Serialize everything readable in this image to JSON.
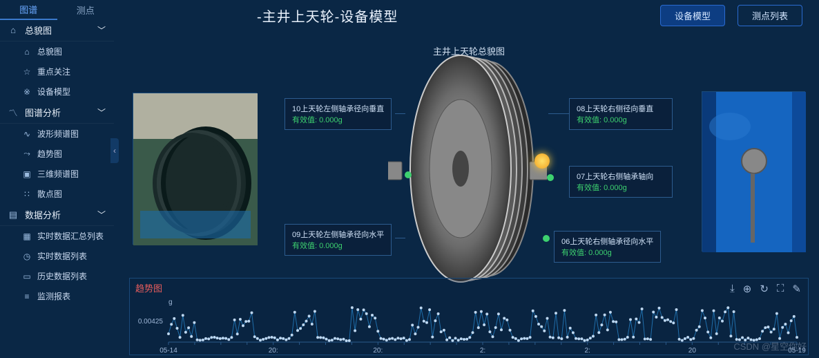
{
  "tabs": {
    "spectrum": "图谱",
    "points": "测点"
  },
  "nav": {
    "group1": {
      "label": "总貌图",
      "items": [
        "总貌图",
        "重点关注",
        "设备模型"
      ]
    },
    "group2": {
      "label": "图谱分析",
      "items": [
        "波形频谱图",
        "趋势图",
        "三维频谱图",
        "散点图"
      ]
    },
    "group3": {
      "label": "数据分析",
      "items": [
        "实时数据汇总列表",
        "实时数据列表",
        "历史数据列表",
        "监测报表"
      ]
    }
  },
  "title": "-主井上天轮-设备模型",
  "buttons": {
    "model": "设备模型",
    "list": "测点列表"
  },
  "subtitle": "主井上天轮总貌图",
  "sensors": {
    "s10": {
      "name": "10上天轮左侧轴承径向垂直",
      "val": "有效值: 0.000g"
    },
    "s09": {
      "name": "09上天轮左侧轴承径向水平",
      "val": "有效值: 0.000g"
    },
    "s08": {
      "name": "08上天轮右侧径向垂直",
      "val": "有效值: 0.000g"
    },
    "s07": {
      "name": "07上天轮右侧轴承轴向",
      "val": "有效值: 0.000g"
    },
    "s06": {
      "name": "06上天轮右侧轴承径向水平",
      "val": "有效值: 0.000g"
    }
  },
  "chart": {
    "title": "趋势图",
    "y_unit": "g",
    "y_tick": "0.00425",
    "x_ticks": [
      "05-14",
      "",
      "",
      "",
      "20:",
      "",
      "",
      "",
      "20:",
      "",
      "",
      "",
      "2:",
      "",
      "",
      "",
      "2:",
      "",
      "",
      "",
      "20",
      "",
      "",
      "",
      "05-19"
    ],
    "line_color": "#2a8fd8",
    "point_color": "#d0e8ff",
    "background": "#0a2745"
  },
  "watermark": "CSDN @星空你好",
  "colors": {
    "bg": "#0a2745",
    "accent": "#2a6bd1",
    "green": "#3dd16f",
    "yellow": "#f0c020",
    "text": "#e6eef7",
    "border": "#2d5c8f"
  }
}
